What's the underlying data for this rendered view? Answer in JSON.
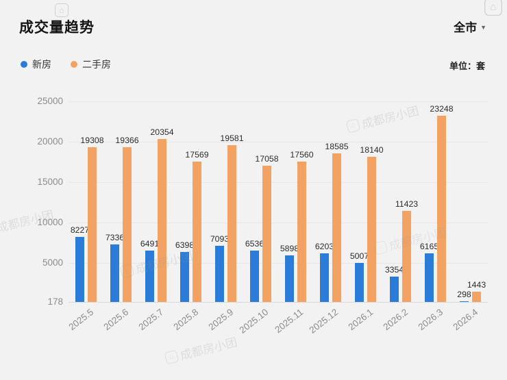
{
  "header": {
    "title": "成交量趋势",
    "region_selector": "全市",
    "unit_label": "单位：套"
  },
  "legend": [
    {
      "label": "新房",
      "color": "#2b7bd9"
    },
    {
      "label": "二手房",
      "color": "#f2a363"
    }
  ],
  "watermark": {
    "text": "成都房小团"
  },
  "chart_data": {
    "type": "bar",
    "title": "成交量趋势",
    "unit": "套",
    "categories": [
      "2025.5",
      "2025.6",
      "2025.7",
      "2025.8",
      "2025.9",
      "2025.10",
      "2025.11",
      "2025.12",
      "2026.1",
      "2026.2",
      "2026.3",
      "2026.4"
    ],
    "series": [
      {
        "name": "新房",
        "color": "#2b7bd9",
        "values": [
          8227,
          7336,
          6491,
          6398,
          7093,
          6536,
          5898,
          6203,
          5007,
          3354,
          6165,
          298
        ]
      },
      {
        "name": "二手房",
        "color": "#f2a363",
        "values": [
          19308,
          19366,
          20354,
          17569,
          19581,
          17058,
          17560,
          18585,
          18140,
          11423,
          23248,
          1443
        ]
      }
    ],
    "y_ticks": [
      25000,
      20000,
      15000,
      10000,
      5000,
      178
    ],
    "ylim": [
      178,
      25000
    ],
    "grid": true,
    "legend_position": "top-left",
    "value_labels": true
  }
}
